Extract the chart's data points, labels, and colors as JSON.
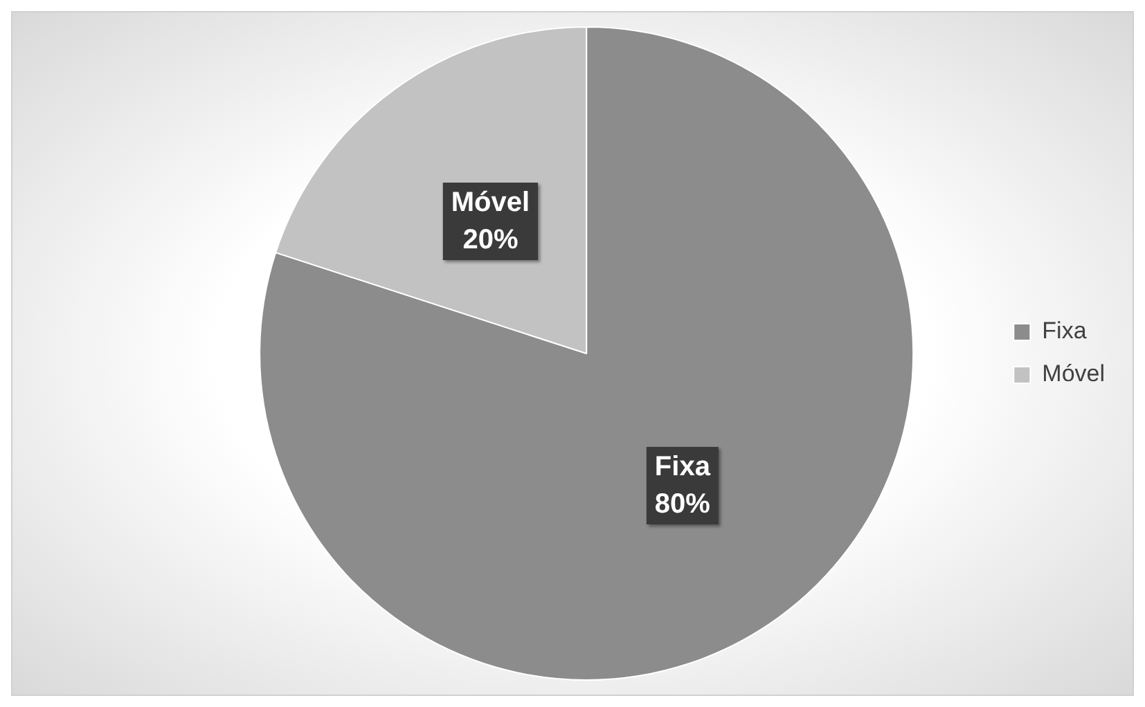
{
  "chart_data": {
    "type": "pie",
    "categories": [
      "Fixa",
      "Móvel"
    ],
    "values": [
      80,
      20
    ],
    "colors": [
      "#8c8c8c",
      "#c2c2c2"
    ],
    "value_labels": [
      "80%",
      "20%"
    ],
    "legend": "right"
  }
}
